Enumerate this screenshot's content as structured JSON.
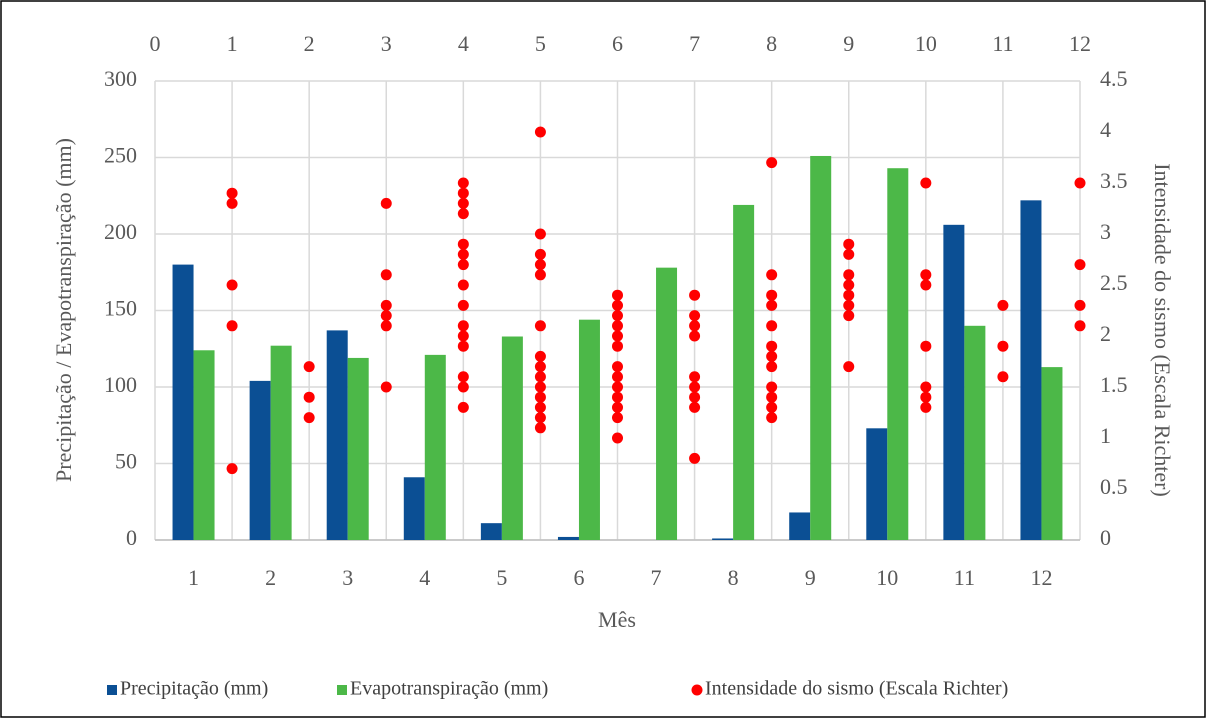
{
  "chart_data": {
    "type": "bar",
    "categories": [
      "1",
      "2",
      "3",
      "4",
      "5",
      "6",
      "7",
      "8",
      "9",
      "10",
      "11",
      "12"
    ],
    "x_label": "Mês",
    "y_label": "Precipitação / Evapotranspiração (mm)",
    "y2_label": "Intensidade do sismo (Escala Richter)",
    "ylim": [
      0,
      300
    ],
    "yticks": [
      0,
      50,
      100,
      150,
      200,
      250,
      300
    ],
    "y2lim": [
      0,
      4.5
    ],
    "y2ticks": [
      0,
      0.5,
      1,
      1.5,
      2,
      2.5,
      3,
      3.5,
      4,
      4.5
    ],
    "xlim": [
      0,
      12
    ],
    "xticks": [
      0,
      1,
      2,
      3,
      4,
      5,
      6,
      7,
      8,
      9,
      10,
      11,
      12
    ],
    "grid": true,
    "legend": "bottom",
    "series": [
      {
        "name": "Precipitação (mm)",
        "type": "bar",
        "color": "#0b4f94",
        "values": [
          180,
          104,
          137,
          41,
          11,
          2,
          0,
          1,
          18,
          73,
          206,
          222
        ]
      },
      {
        "name": "Evapotranspiração (mm)",
        "type": "bar",
        "color": "#4cb848",
        "values": [
          124,
          127,
          119,
          121,
          133,
          144,
          178,
          219,
          251,
          243,
          140,
          113
        ]
      },
      {
        "name": "Intensidade do sismo (Escala Richter)",
        "type": "scatter",
        "color": "#ff0000",
        "axis": "y2",
        "x": [
          1,
          1,
          1,
          1,
          1,
          2,
          2,
          2,
          3,
          3,
          3,
          3,
          3,
          3,
          4,
          4,
          4,
          4,
          4,
          4,
          4,
          4,
          4,
          4,
          4,
          4,
          4,
          4,
          4,
          5,
          5,
          5,
          5,
          5,
          5,
          5,
          5,
          5,
          5,
          5,
          5,
          5,
          5,
          6,
          6,
          6,
          6,
          6,
          6,
          6,
          6,
          6,
          6,
          6,
          6,
          6,
          7,
          7,
          7,
          7,
          7,
          7,
          7,
          7,
          7,
          8,
          8,
          8,
          8,
          8,
          8,
          8,
          8,
          8,
          8,
          8,
          8,
          9,
          9,
          9,
          9,
          9,
          9,
          9,
          9,
          10,
          10,
          10,
          10,
          10,
          10,
          10,
          11,
          11,
          11,
          12,
          12,
          12,
          12
        ],
        "values": [
          3.4,
          3.3,
          2.5,
          2.1,
          0.7,
          1.7,
          1.4,
          1.2,
          3.3,
          2.6,
          2.3,
          2.2,
          2.1,
          1.5,
          3.5,
          3.4,
          3.3,
          3.2,
          2.9,
          2.8,
          2.7,
          2.5,
          2.3,
          2.1,
          2.0,
          1.9,
          1.6,
          1.5,
          1.3,
          4.0,
          3.0,
          2.8,
          2.7,
          2.6,
          2.1,
          1.8,
          1.7,
          1.6,
          1.5,
          1.4,
          1.3,
          1.2,
          1.1,
          2.4,
          2.3,
          2.2,
          2.1,
          2.0,
          1.9,
          1.7,
          1.6,
          1.5,
          1.4,
          1.3,
          1.2,
          1.0,
          2.4,
          2.2,
          2.1,
          2.0,
          1.6,
          1.5,
          1.4,
          1.3,
          0.8,
          3.7,
          2.6,
          2.4,
          2.3,
          2.1,
          1.9,
          1.8,
          1.7,
          1.5,
          1.4,
          1.3,
          1.2,
          2.9,
          2.8,
          2.6,
          2.5,
          2.4,
          2.3,
          2.2,
          1.7,
          3.5,
          2.6,
          2.5,
          1.9,
          1.5,
          1.4,
          1.3,
          2.3,
          1.9,
          1.6,
          3.5,
          2.7,
          2.3,
          2.1
        ]
      }
    ]
  }
}
